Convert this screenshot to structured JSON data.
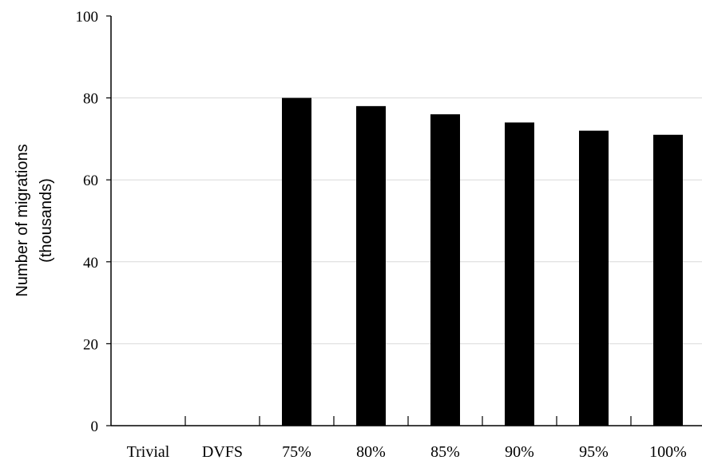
{
  "chart_data": {
    "type": "bar",
    "categories": [
      "Trivial",
      "DVFS",
      "75%",
      "80%",
      "85%",
      "90%",
      "95%",
      "100%"
    ],
    "values": [
      0,
      0,
      80,
      78,
      76,
      74,
      72,
      71
    ],
    "title": "",
    "xlabel": "",
    "ylabel_lines": [
      "Number of migrations",
      "(thousands)"
    ],
    "ylim": [
      0,
      100
    ],
    "yticks": [
      "0",
      "20",
      "40",
      "60",
      "80",
      "100"
    ],
    "grid": true,
    "legend": "none",
    "bar_color": "#000000",
    "grid_color": "#d9d9d9"
  }
}
